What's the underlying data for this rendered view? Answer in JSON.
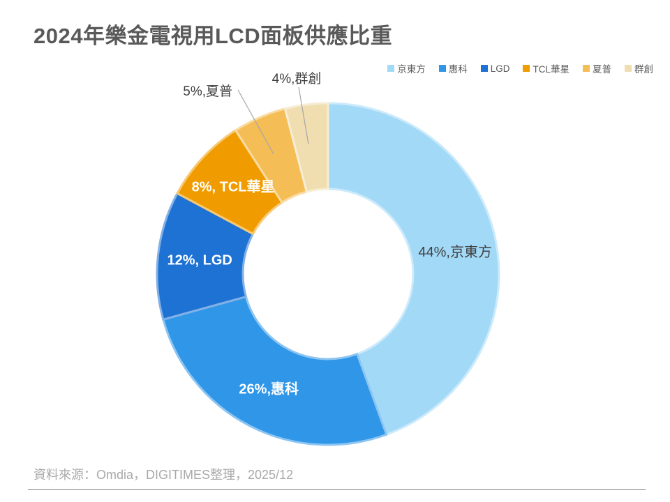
{
  "title": "2024年樂金電視用LCD面板供應比重",
  "source": "資料來源：Omdia，DIGITIMES整理，2025/12",
  "chart_data": {
    "type": "pie",
    "subtype": "donut",
    "title": "2024年樂金電視用LCD面板供應比重",
    "categories": [
      "京東方",
      "惠科",
      "LGD",
      "TCL華星",
      "夏普",
      "群創"
    ],
    "values": [
      44,
      26,
      12,
      8,
      5,
      4
    ],
    "unit": "%",
    "data_labels": [
      "44%,京東方",
      "26%,惠科",
      "12%, LGD",
      "8%, TCL華星",
      "5%,夏普",
      "4%,群創"
    ],
    "colors": [
      "#A2D9F7",
      "#2F96E8",
      "#1D72D3",
      "#F09C00",
      "#F5BD55",
      "#F0DEB1"
    ],
    "label_text_colors": [
      "#404040",
      "#FFFFFF",
      "#FFFFFF",
      "#FFFFFF",
      "#404040",
      "#404040"
    ],
    "label_weights": [
      "normal",
      "bold",
      "bold",
      "bold",
      "normal",
      "normal"
    ],
    "label_placements": [
      "inside",
      "inside",
      "inside",
      "inside",
      "callout",
      "callout"
    ],
    "legend_position": "top-right",
    "start_angle_deg": 0,
    "direction": "clockwise",
    "hole_ratio": 0.5,
    "leader_line_color": "#A6A6A6",
    "title_color": "#595959",
    "source_color": "#A9A9A9"
  }
}
